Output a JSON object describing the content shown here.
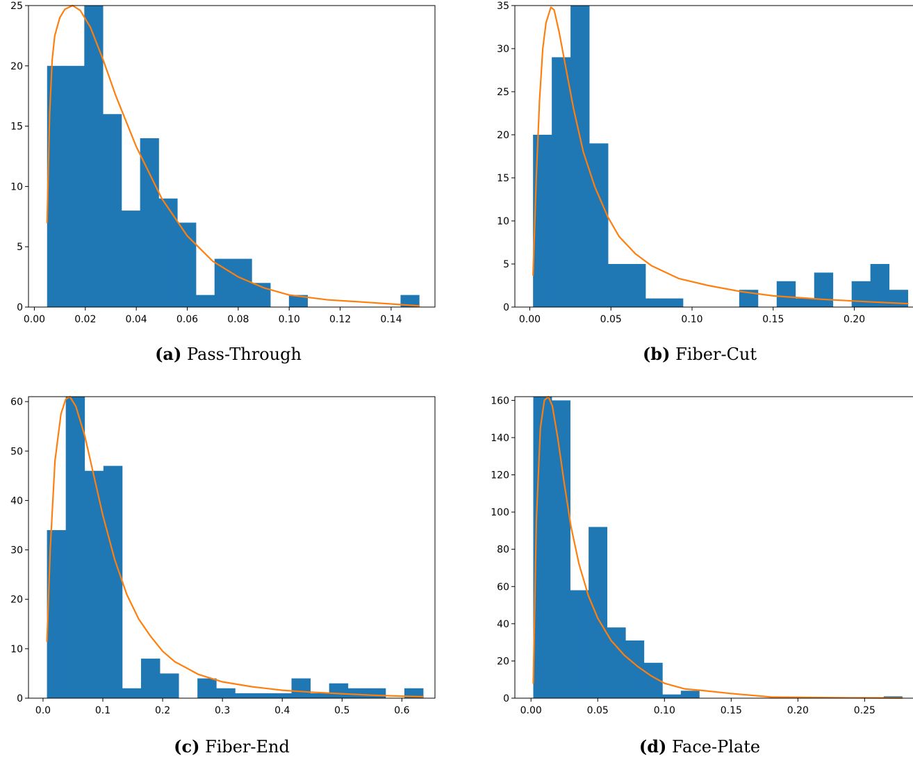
{
  "chart_data": [
    {
      "type": "bar",
      "subtype": "histogram-with-density-curve",
      "caption_letter": "(a)",
      "caption_text": "Pass-Through",
      "xlim": [
        -0.0023,
        0.1572
      ],
      "ylim": [
        0,
        25
      ],
      "xticks": [
        0.0,
        0.02,
        0.04,
        0.06,
        0.08,
        0.1,
        0.12,
        0.14
      ],
      "xtick_labels": [
        "0.00",
        "0.02",
        "0.04",
        "0.06",
        "0.08",
        "0.10",
        "0.12",
        "0.14"
      ],
      "yticks": [
        0,
        5,
        10,
        15,
        20,
        25
      ],
      "ytick_labels": [
        "0",
        "5",
        "10",
        "15",
        "20",
        "25"
      ],
      "bin_edges": [
        0.005,
        0.0123,
        0.0196,
        0.0269,
        0.0342,
        0.0415,
        0.0488,
        0.0561,
        0.0634,
        0.0707,
        0.078,
        0.0853,
        0.0926,
        0.0999,
        0.1072,
        0.1145,
        0.1218,
        0.1291,
        0.1364,
        0.1437,
        0.151
      ],
      "counts": [
        20,
        20,
        25,
        16,
        8,
        14,
        9,
        7,
        1,
        4,
        4,
        2,
        0,
        1,
        0,
        0,
        0,
        0,
        0,
        1
      ],
      "curve": {
        "x": [
          0.005,
          0.006,
          0.007,
          0.008,
          0.01,
          0.012,
          0.015,
          0.018,
          0.022,
          0.027,
          0.032,
          0.04,
          0.05,
          0.06,
          0.07,
          0.08,
          0.09,
          0.1,
          0.115,
          0.13,
          0.151
        ],
        "y": [
          7,
          16,
          20.5,
          22.5,
          24,
          24.7,
          25,
          24.6,
          23.2,
          20.5,
          17.5,
          13.3,
          9.0,
          5.9,
          3.8,
          2.5,
          1.6,
          1.0,
          0.6,
          0.4,
          0.1
        ]
      },
      "bar_color": "#1f77b4",
      "line_color": "#ff7f0e"
    },
    {
      "type": "bar",
      "subtype": "histogram-with-density-curve",
      "caption_letter": "(b)",
      "caption_text": "Fiber-Cut",
      "xlim": [
        -0.0092,
        0.2413
      ],
      "ylim": [
        0,
        35
      ],
      "xticks": [
        0.0,
        0.05,
        0.1,
        0.15,
        0.2
      ],
      "xtick_labels": [
        "0.00",
        "0.05",
        "0.10",
        "0.15",
        "0.20"
      ],
      "yticks": [
        0,
        5,
        10,
        15,
        20,
        25,
        30,
        35
      ],
      "ytick_labels": [
        "0",
        "5",
        "10",
        "15",
        "20",
        "25",
        "30",
        "35"
      ],
      "bin_edges": [
        0.002,
        0.01355,
        0.0251,
        0.03665,
        0.0482,
        0.05975,
        0.0713,
        0.08285,
        0.0944,
        0.10595,
        0.1175,
        0.12905,
        0.1406,
        0.15215,
        0.1637,
        0.17525,
        0.1868,
        0.19835,
        0.2099,
        0.22145,
        0.233
      ],
      "counts": [
        20,
        29,
        35,
        19,
        5,
        5,
        1,
        1,
        0,
        0,
        0,
        2,
        0,
        3,
        1,
        4,
        0,
        3,
        5,
        2
      ],
      "curve": {
        "x": [
          0.002,
          0.004,
          0.006,
          0.008,
          0.01,
          0.013,
          0.015,
          0.018,
          0.022,
          0.027,
          0.033,
          0.04,
          0.048,
          0.055,
          0.065,
          0.075,
          0.092,
          0.11,
          0.13,
          0.15,
          0.18,
          0.21,
          0.233
        ],
        "y": [
          3.7,
          15,
          24,
          30,
          33,
          34.8,
          34.5,
          32,
          28,
          23,
          18,
          14,
          10.5,
          8.2,
          6.2,
          4.8,
          3.3,
          2.5,
          1.8,
          1.3,
          0.9,
          0.6,
          0.4
        ]
      },
      "bar_color": "#1f77b4",
      "line_color": "#ff7f0e"
    },
    {
      "type": "bar",
      "subtype": "histogram-with-density-curve",
      "caption_letter": "(c)",
      "caption_text": "Fiber-End",
      "xlim": [
        -0.0243,
        0.6553
      ],
      "ylim": [
        0,
        61
      ],
      "xticks": [
        0.0,
        0.1,
        0.2,
        0.3,
        0.4,
        0.5,
        0.6
      ],
      "xtick_labels": [
        "0.0",
        "0.1",
        "0.2",
        "0.3",
        "0.4",
        "0.5",
        "0.6"
      ],
      "yticks": [
        0,
        10,
        20,
        30,
        40,
        50,
        60
      ],
      "ytick_labels": [
        "0",
        "10",
        "20",
        "30",
        "40",
        "50",
        "60"
      ],
      "bin_edges": [
        0.0066,
        0.03805,
        0.0695,
        0.10095,
        0.1324,
        0.16385,
        0.1953,
        0.22675,
        0.2582,
        0.28965,
        0.3211,
        0.35255,
        0.384,
        0.41545,
        0.4469,
        0.47835,
        0.5098,
        0.54125,
        0.5727,
        0.60415,
        0.6356
      ],
      "counts": [
        34,
        61,
        46,
        47,
        2,
        8,
        5,
        0,
        4,
        2,
        1,
        1,
        1,
        4,
        1,
        3,
        2,
        2,
        0,
        2
      ],
      "curve": {
        "x": [
          0.0066,
          0.012,
          0.02,
          0.03,
          0.038,
          0.045,
          0.055,
          0.07,
          0.085,
          0.1,
          0.12,
          0.14,
          0.16,
          0.18,
          0.2,
          0.22,
          0.26,
          0.3,
          0.35,
          0.4,
          0.45,
          0.5,
          0.55,
          0.6,
          0.6356
        ],
        "y": [
          11.5,
          30,
          48,
          57.5,
          60.5,
          61,
          59,
          53,
          45,
          37,
          28,
          21,
          16,
          12.5,
          9.5,
          7.4,
          4.8,
          3.3,
          2.3,
          1.6,
          1.2,
          0.9,
          0.6,
          0.4,
          0.3
        ]
      },
      "bar_color": "#1f77b4",
      "line_color": "#ff7f0e"
    },
    {
      "type": "bar",
      "subtype": "histogram-with-density-curve",
      "caption_letter": "(d)",
      "caption_text": "Face-Plate",
      "xlim": [
        -0.0121,
        0.2925
      ],
      "ylim": [
        0,
        162
      ],
      "xticks": [
        0.0,
        0.05,
        0.1,
        0.15,
        0.2,
        0.25
      ],
      "xtick_labels": [
        "0.00",
        "0.05",
        "0.10",
        "0.15",
        "0.20",
        "0.25"
      ],
      "yticks": [
        0,
        20,
        40,
        60,
        80,
        100,
        120,
        140,
        160
      ],
      "ytick_labels": [
        "0",
        "20",
        "40",
        "60",
        "80",
        "100",
        "120",
        "140",
        "160"
      ],
      "bin_edges": [
        0.0017,
        0.01552,
        0.02934,
        0.04316,
        0.05698,
        0.0708,
        0.08462,
        0.09844,
        0.11226,
        0.12608,
        0.1399,
        0.15372,
        0.16754,
        0.18136,
        0.19518,
        0.209,
        0.22282,
        0.23664,
        0.25046,
        0.26428,
        0.2781
      ],
      "counts": [
        162,
        160,
        58,
        92,
        38,
        31,
        19,
        2,
        4,
        0,
        0,
        0,
        0,
        0,
        0,
        0,
        0,
        0,
        0,
        1
      ],
      "curve": {
        "x": [
          0.0017,
          0.004,
          0.007,
          0.01,
          0.013,
          0.016,
          0.02,
          0.025,
          0.03,
          0.036,
          0.043,
          0.05,
          0.06,
          0.07,
          0.08,
          0.09,
          0.1,
          0.115,
          0.13,
          0.15,
          0.18,
          0.21,
          0.24,
          0.2781
        ],
        "y": [
          8,
          95,
          145,
          160,
          162,
          157,
          140,
          115,
          92,
          72,
          55,
          43,
          31,
          23,
          17,
          12,
          8,
          5,
          4,
          2.5,
          0.6,
          0.4,
          0.2,
          0.1
        ]
      },
      "bar_color": "#1f77b4",
      "line_color": "#ff7f0e"
    }
  ]
}
